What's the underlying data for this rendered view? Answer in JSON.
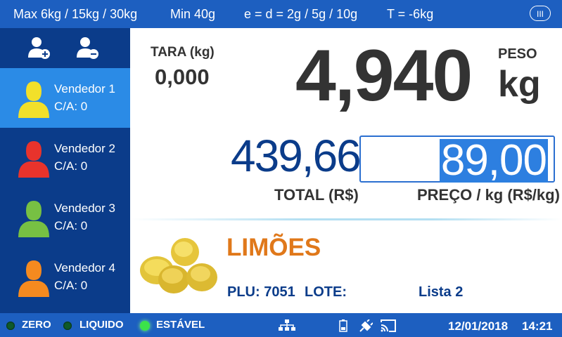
{
  "header": {
    "max": "Max 6kg / 15kg / 30kg",
    "min": "Min 40g",
    "e_d": "e = d = 2g / 5g / 10g",
    "t": "T = -6kg",
    "class_badge": "III"
  },
  "sidebar": {
    "add_user_icon": "add-user-icon",
    "remove_user_icon": "remove-user-icon",
    "vendors": [
      {
        "name": "Vendedor 1",
        "ca": "C/A: 0",
        "color": "#f2e02a",
        "active": true
      },
      {
        "name": "Vendedor 2",
        "ca": "C/A: 0",
        "color": "#e8332c",
        "active": false
      },
      {
        "name": "Vendedor 3",
        "ca": "C/A: 0",
        "color": "#77c043",
        "active": false
      },
      {
        "name": "Vendedor 4",
        "ca": "C/A: 0",
        "color": "#f58a1f",
        "active": false
      }
    ]
  },
  "main": {
    "tara_label": "TARA (kg)",
    "tara_value": "0,000",
    "weight": "4,940",
    "peso_label": "PESO",
    "unit": "kg",
    "total_value": "439,66",
    "total_label": "TOTAL (R$)",
    "price_value": "89,00",
    "price_label": "PREÇO / kg (R$/kg)",
    "product_name": "LIMÕES",
    "plu": "PLU: 7051",
    "lote": "LOTE:",
    "lista": "Lista 2"
  },
  "statusbar": {
    "zero": "ZERO",
    "liquido": "LIQUIDO",
    "estavel": "ESTÁVEL",
    "zero_on": false,
    "liquido_on": false,
    "estavel_on": true,
    "network_icon": "network-icon",
    "battery_icon": "battery-icon",
    "power_icon": "power-plug-icon",
    "cast_icon": "cast-icon",
    "date": "12/01/2018",
    "time": "14:21"
  },
  "colors": {
    "bar_blue": "#1d5fc0",
    "sidebar_navy": "#0b3c8a",
    "active_vendor": "#2b8be6",
    "product_orange": "#e0781a"
  }
}
